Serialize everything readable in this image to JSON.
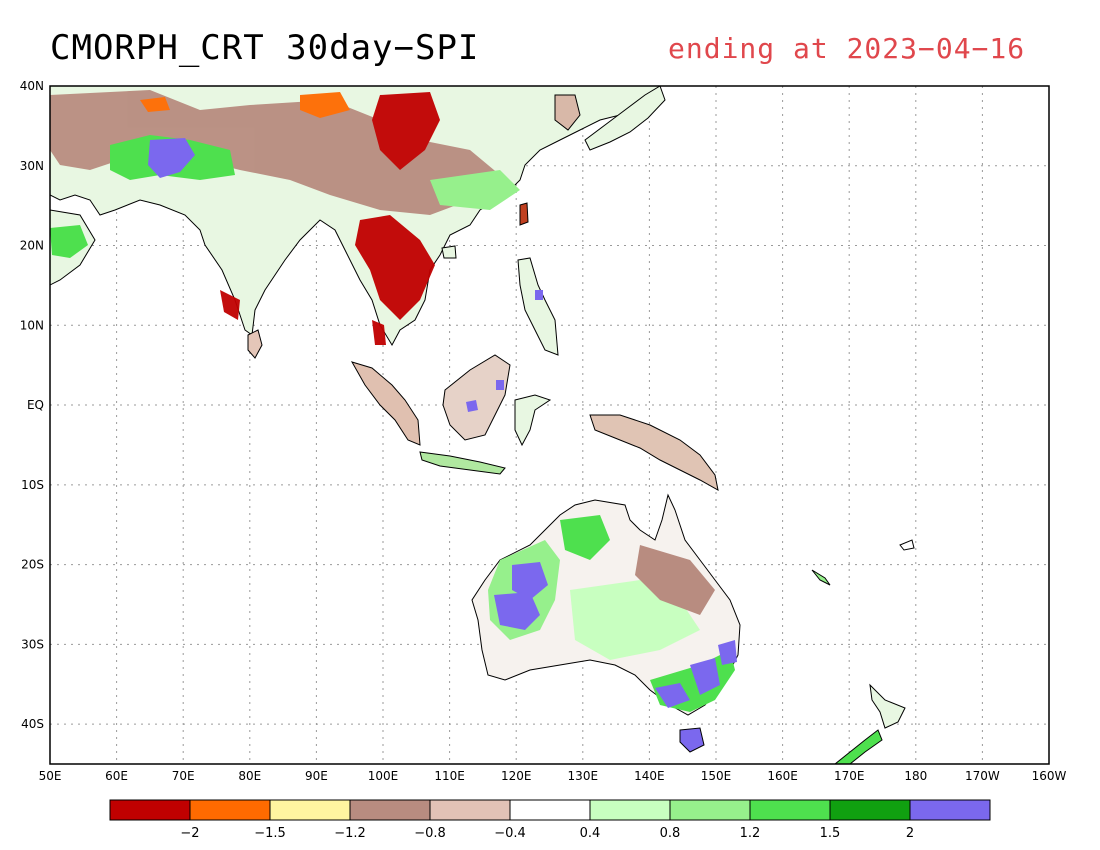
{
  "title": "CMORPH_CRT 30day−SPI",
  "subtitle": "ending at 2023−04−16",
  "map": {
    "lon_range": [
      50,
      200
    ],
    "lat_range": [
      -45,
      40
    ],
    "lon_ticks": [
      "50E",
      "60E",
      "70E",
      "80E",
      "90E",
      "100E",
      "110E",
      "120E",
      "130E",
      "140E",
      "150E",
      "160E",
      "170E",
      "180",
      "170W",
      "160W"
    ],
    "lat_ticks": [
      "40N",
      "30N",
      "20N",
      "10N",
      "EQ",
      "10S",
      "20S",
      "30S",
      "40S"
    ],
    "colors": {
      "very_dry": "#c00000",
      "dry": "#ff6a00",
      "light_dry": "#fff5a0",
      "brown": "#b88c80",
      "light_brown": "#e2c2b6",
      "neutral": "#ffffff",
      "wet1": "#c8ffc0",
      "wet2": "#96f08c",
      "wet3": "#4ee04e",
      "wet4": "#10a010",
      "very_wet": "#7b68ee"
    }
  },
  "colorbar": {
    "colors": [
      "#c00000",
      "#ff6a00",
      "#fff5a0",
      "#b88c80",
      "#e2c2b6",
      "#ffffff",
      "#c8ffc0",
      "#96f08c",
      "#4ee04e",
      "#10a010",
      "#7b68ee"
    ],
    "labels": [
      "−2",
      "−1.5",
      "−1.2",
      "−0.8",
      "−0.4",
      "0.4",
      "0.8",
      "1.2",
      "1.5",
      "2"
    ]
  }
}
